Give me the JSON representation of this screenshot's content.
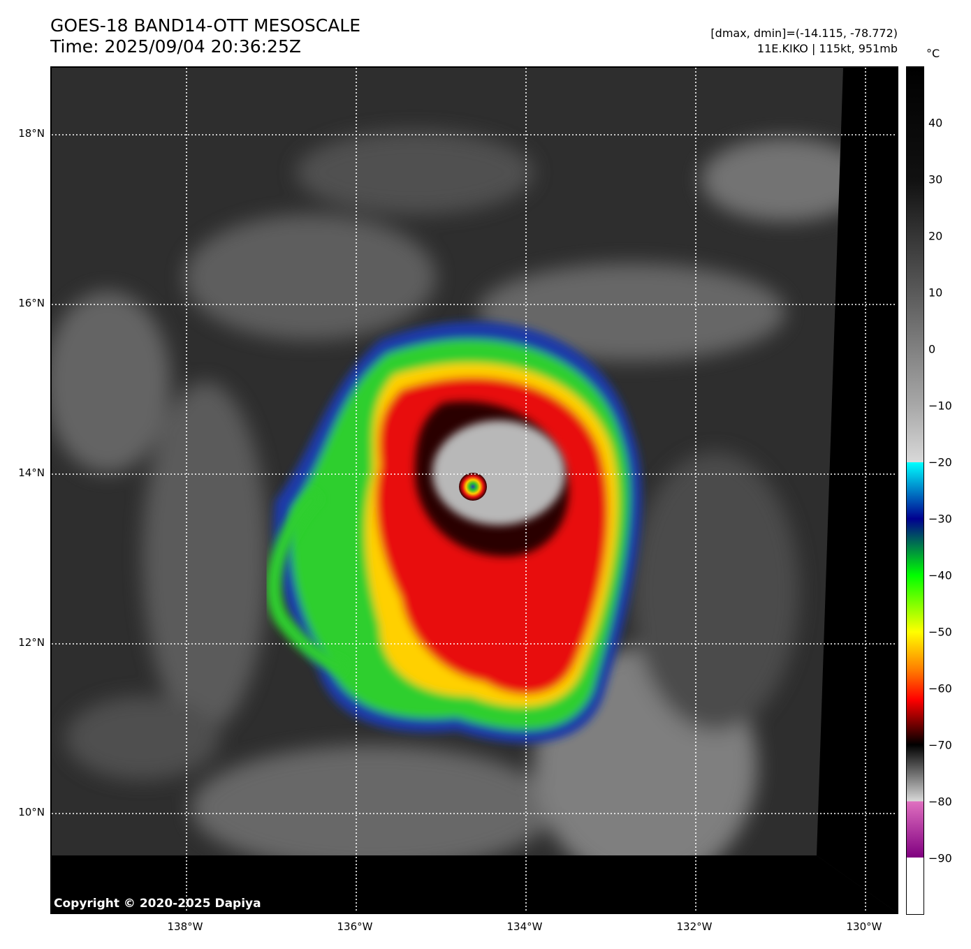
{
  "header": {
    "title": "GOES-18 BAND14-OTT MESOSCALE",
    "time": "Time: 2025/09/04 20:36:25Z",
    "dminmax": "[dmax, dmin]=(-14.115, -78.772)",
    "storm": "11E.KIKO | 115kt, 951mb"
  },
  "map": {
    "lat_labels": [
      {
        "label": "18°N",
        "lat": 18
      },
      {
        "label": "16°N",
        "lat": 16
      },
      {
        "label": "14°N",
        "lat": 14
      },
      {
        "label": "12°N",
        "lat": 12
      },
      {
        "label": "10°N",
        "lat": 10
      }
    ],
    "lon_labels": [
      {
        "label": "138°W",
        "lon": -138
      },
      {
        "label": "136°W",
        "lon": -136
      },
      {
        "label": "134°W",
        "lon": -134
      },
      {
        "label": "132°W",
        "lon": -132
      },
      {
        "label": "130°W",
        "lon": -130
      }
    ],
    "copyright": "Copyright © 2020-2025 Dapiya"
  },
  "colorbar": {
    "unit": "°C",
    "range": [
      -100,
      50
    ],
    "labels": [
      {
        "label": "40",
        "value": 40
      },
      {
        "label": "30",
        "value": 30
      },
      {
        "label": "20",
        "value": 20
      },
      {
        "label": "10",
        "value": 10
      },
      {
        "label": "0",
        "value": 0
      },
      {
        "label": "−10",
        "value": -10
      },
      {
        "label": "−20",
        "value": -20
      },
      {
        "label": "−30",
        "value": -30
      },
      {
        "label": "−40",
        "value": -40
      },
      {
        "label": "−50",
        "value": -50
      },
      {
        "label": "−60",
        "value": -60
      },
      {
        "label": "−70",
        "value": -70
      },
      {
        "label": "−80",
        "value": -80
      },
      {
        "label": "−90",
        "value": -90
      }
    ]
  }
}
